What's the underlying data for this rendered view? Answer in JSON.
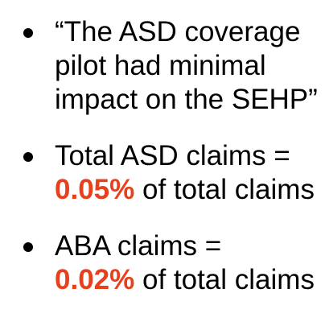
{
  "bullets": [
    {
      "lines": [
        [
          {
            "text": "“The ASD coverage"
          }
        ],
        [
          {
            "text": "pilot had minimal"
          }
        ],
        [
          {
            "text": "impact on the SEHP”"
          }
        ]
      ]
    },
    {
      "lines": [
        [
          {
            "text": "Total ASD claims ="
          }
        ],
        [
          {
            "text": "0.05%",
            "emphasis": true
          },
          {
            "text": " of total claims"
          }
        ]
      ]
    },
    {
      "lines": [
        [
          {
            "text": "ABA claims ="
          }
        ],
        [
          {
            "text": "0.02%",
            "emphasis": true
          },
          {
            "text": " of total claims"
          }
        ]
      ]
    }
  ]
}
